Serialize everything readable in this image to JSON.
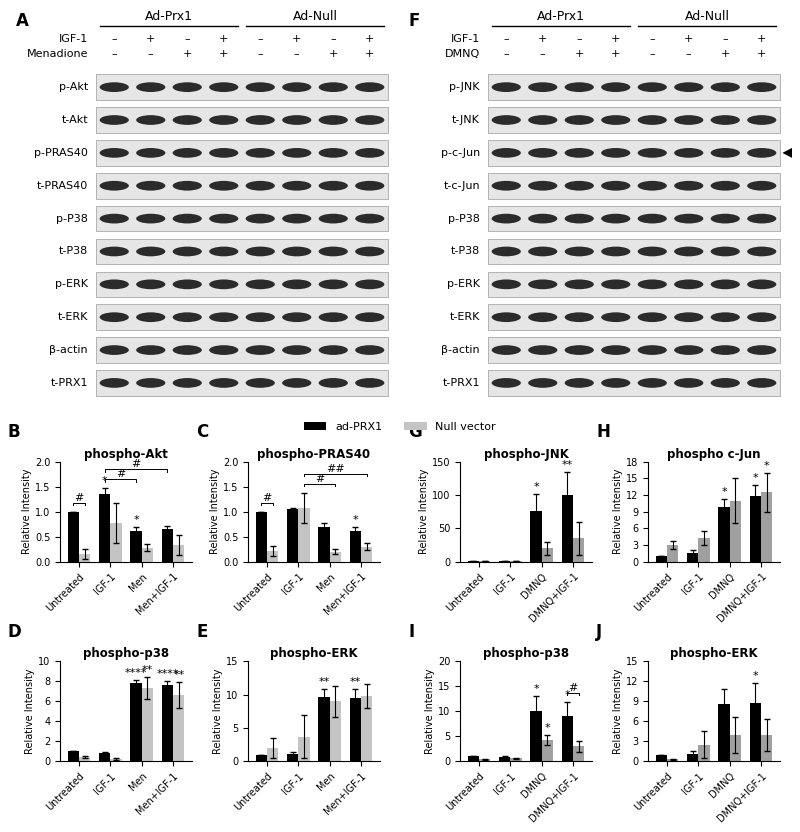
{
  "legend": "upper center",
  "blots": [
    {
      "panel": "A",
      "groups": [
        "Ad-Prx1",
        "Ad-Null"
      ],
      "treatments": [
        {
          "name": "IGF-1",
          "lanes": [
            "–",
            "+",
            "–",
            "+",
            "–",
            "+",
            "–",
            "+"
          ]
        },
        {
          "name": "Menadione",
          "lanes": [
            "–",
            "–",
            "+",
            "+",
            "–",
            "–",
            "+",
            "+"
          ]
        }
      ],
      "rows": [
        {
          "label": "p-Akt"
        },
        {
          "label": "t-Akt"
        },
        {
          "label": "p-PRAS40"
        },
        {
          "label": "t-PRAS40"
        },
        {
          "label": "p-P38"
        },
        {
          "label": "t-P38"
        },
        {
          "label": "p-ERK"
        },
        {
          "label": "t-ERK"
        },
        {
          "label": "β-actin"
        },
        {
          "label": "t-PRX1"
        }
      ]
    },
    {
      "panel": "F",
      "groups": [
        "Ad-Prx1",
        "Ad-Null"
      ],
      "treatments": [
        {
          "name": "IGF-1",
          "lanes": [
            "–",
            "+",
            "–",
            "+",
            "–",
            "+",
            "–",
            "+"
          ]
        },
        {
          "name": "DMNQ",
          "lanes": [
            "–",
            "–",
            "+",
            "+",
            "–",
            "–",
            "+",
            "+"
          ]
        }
      ],
      "rows": [
        {
          "label": "p-JNK"
        },
        {
          "label": "t-JNK"
        },
        {
          "label": "p-c-Jun",
          "arrow": true
        },
        {
          "label": "t-c-Jun"
        },
        {
          "label": "p-P38"
        },
        {
          "label": "t-P38"
        },
        {
          "label": "p-ERK"
        },
        {
          "label": "t-ERK"
        },
        {
          "label": "β-actin"
        },
        {
          "label": "t-PRX1"
        }
      ]
    }
  ],
  "chart_data": [
    {
      "type": "bar",
      "panel": "B",
      "title": "phospho-Akt",
      "y_label": "Relative Intensity",
      "categories": [
        "Untreated",
        "IGF-1",
        "Men",
        "Men+IGF-1"
      ],
      "series": [
        {
          "name": "ad-PRX1",
          "color": "#000000",
          "values": [
            1.0,
            1.35,
            0.62,
            0.65
          ],
          "errors": [
            0,
            0.12,
            0.08,
            0.07
          ]
        },
        {
          "name": "Null vector",
          "color": "#c4c4c4",
          "values": [
            0.15,
            0.78,
            0.28,
            0.33
          ],
          "errors": [
            0.1,
            0.4,
            0.07,
            0.2
          ]
        }
      ],
      "ylim": [
        0,
        2
      ],
      "yticks": [
        {
          "value": 0,
          "label": "0.0"
        },
        {
          "value": 0.5,
          "label": "0.5"
        },
        {
          "value": 1,
          "label": "1.0"
        },
        {
          "value": 1.5,
          "label": "1.5"
        },
        {
          "value": 2,
          "label": "2.0"
        }
      ],
      "annotations": [
        {
          "text": "*",
          "category": 1,
          "series": 0
        },
        {
          "text": "*",
          "category": 2,
          "series": 0
        }
      ],
      "brackets": [
        {
          "text": "#",
          "from": {
            "category": 0,
            "series": 0
          },
          "to": {
            "category": 0,
            "series": 1
          }
        },
        {
          "text": "#",
          "from": {
            "category": 1,
            "series": 0
          },
          "to": {
            "category": 2,
            "series": 0
          }
        },
        {
          "text": "#",
          "from": {
            "category": 1,
            "series": 0
          },
          "to": {
            "category": 3,
            "series": 0
          }
        }
      ]
    },
    {
      "type": "bar",
      "panel": "C",
      "title": "phospho-PRAS40",
      "y_label": "Relative Intensity",
      "categories": [
        "Untreated",
        "IGF-1",
        "Men",
        "Men+IGF-1"
      ],
      "series": [
        {
          "name": "ad-PRX1",
          "color": "#000000",
          "values": [
            1.0,
            1.05,
            0.7,
            0.62
          ],
          "errors": [
            0,
            0.03,
            0.08,
            0.08
          ]
        },
        {
          "name": "Null vector",
          "color": "#c4c4c4",
          "values": [
            0.22,
            1.08,
            0.2,
            0.3
          ],
          "errors": [
            0.1,
            0.3,
            0.05,
            0.07
          ]
        }
      ],
      "ylim": [
        0,
        2
      ],
      "yticks": [
        {
          "value": 0,
          "label": "0.0"
        },
        {
          "value": 0.5,
          "label": "0.5"
        },
        {
          "value": 1,
          "label": "1.0"
        },
        {
          "value": 1.5,
          "label": "1.5"
        },
        {
          "value": 2,
          "label": "2.0"
        }
      ],
      "annotations": [
        {
          "text": "*",
          "category": 3,
          "series": 0
        }
      ],
      "brackets": [
        {
          "text": "#",
          "from": {
            "category": 0,
            "series": 0
          },
          "to": {
            "category": 0,
            "series": 1
          }
        },
        {
          "text": "#",
          "from": {
            "category": 1,
            "series": 1
          },
          "to": {
            "category": 2,
            "series": 1
          }
        },
        {
          "text": "##",
          "from": {
            "category": 1,
            "series": 1
          },
          "to": {
            "category": 3,
            "series": 1
          }
        }
      ]
    },
    {
      "type": "bar",
      "panel": "D",
      "title": "phospho-p38",
      "y_label": "Relative Intensity",
      "categories": [
        "Untreated",
        "IGF-1",
        "Men",
        "Men+IGF-1"
      ],
      "series": [
        {
          "name": "ad-PRX1",
          "color": "#000000",
          "values": [
            1.0,
            0.85,
            7.8,
            7.6
          ],
          "errors": [
            0,
            0.05,
            0.3,
            0.4
          ]
        },
        {
          "name": "Null vector",
          "color": "#c4c4c4",
          "values": [
            0.4,
            0.25,
            7.3,
            6.6
          ],
          "errors": [
            0.1,
            0.1,
            1.1,
            1.3
          ]
        }
      ],
      "ylim": [
        0,
        10
      ],
      "yticks": [
        0,
        2,
        4,
        6,
        8,
        10
      ],
      "annotations": [
        {
          "text": "****",
          "category": 2,
          "series": 0
        },
        {
          "text": "**",
          "category": 2,
          "series": 1
        },
        {
          "text": "****",
          "category": 3,
          "series": 0
        },
        {
          "text": "**",
          "category": 3,
          "series": 1
        }
      ],
      "brackets": []
    },
    {
      "type": "bar",
      "panel": "E",
      "title": "phospho-ERK",
      "y_label": "Relative Intensity",
      "categories": [
        "Untreated",
        "IGF-1",
        "Men",
        "Men+IGF-1"
      ],
      "series": [
        {
          "name": "ad-PRX1",
          "color": "#000000",
          "values": [
            1.0,
            1.1,
            9.6,
            9.5
          ],
          "errors": [
            0,
            0.3,
            1.2,
            1.3
          ]
        },
        {
          "name": "Null vector",
          "color": "#c4c4c4",
          "values": [
            2.0,
            3.7,
            9.0,
            9.8
          ],
          "errors": [
            1.5,
            3.2,
            2.3,
            1.8
          ]
        }
      ],
      "ylim": [
        0,
        15
      ],
      "yticks": [
        0,
        5,
        10,
        15
      ],
      "annotations": [
        {
          "text": "**",
          "category": 2,
          "series": 0
        },
        {
          "text": "**",
          "category": 3,
          "series": 0
        }
      ],
      "brackets": []
    },
    {
      "type": "bar",
      "panel": "G",
      "title": "phospho-JNK",
      "y_label": "Relative Intensity",
      "categories": [
        "Untreated",
        "IGF-1",
        "DMNQ",
        "DMNQ+IGF-1"
      ],
      "series": [
        {
          "name": "ad-PRX1",
          "color": "#000000",
          "values": [
            1,
            1,
            76,
            100
          ],
          "errors": [
            0,
            0.3,
            25,
            35
          ]
        },
        {
          "name": "Null vector",
          "color": "#a0a0a0",
          "values": [
            0.5,
            0.8,
            20,
            35
          ],
          "errors": [
            0.2,
            0.3,
            10,
            25
          ]
        }
      ],
      "ylim": [
        0,
        150
      ],
      "yticks": [
        0,
        50,
        100,
        150
      ],
      "annotations": [
        {
          "text": "*",
          "category": 2,
          "series": 0
        },
        {
          "text": "**",
          "category": 3,
          "series": 0
        }
      ],
      "brackets": []
    },
    {
      "type": "bar",
      "panel": "H",
      "title": "phospho c-Jun",
      "y_label": "Relative Intensity",
      "categories": [
        "Untreated",
        "IGF-1",
        "DMNQ",
        "DMNQ+IGF-1"
      ],
      "series": [
        {
          "name": "ad-PRX1",
          "color": "#000000",
          "values": [
            1.0,
            1.6,
            9.8,
            11.8
          ],
          "errors": [
            0,
            0.5,
            1.5,
            2.0
          ]
        },
        {
          "name": "Null vector",
          "color": "#a0a0a0",
          "values": [
            3.0,
            4.3,
            11.0,
            12.5
          ],
          "errors": [
            0.8,
            1.3,
            4.0,
            3.5
          ]
        }
      ],
      "ylim": [
        0,
        18
      ],
      "yticks": [
        0,
        3,
        6,
        9,
        12,
        15,
        18
      ],
      "annotations": [
        {
          "text": "*",
          "category": 2,
          "series": 0
        },
        {
          "text": "*",
          "category": 3,
          "series": 0
        },
        {
          "text": "*",
          "category": 3,
          "series": 1
        }
      ],
      "brackets": []
    },
    {
      "type": "bar",
      "panel": "I",
      "title": "phospho-p38",
      "y_label": "Relative Intensity",
      "categories": [
        "Untreated",
        "IGF-1",
        "DMNQ",
        "DMNQ+IGF-1"
      ],
      "series": [
        {
          "name": "ad-PRX1",
          "color": "#000000",
          "values": [
            1.0,
            0.8,
            10.0,
            9.1
          ],
          "errors": [
            0,
            0.2,
            3.0,
            2.8
          ]
        },
        {
          "name": "Null vector",
          "color": "#a0a0a0",
          "values": [
            0.4,
            0.6,
            4.3,
            3.0
          ],
          "errors": [
            0.1,
            0.1,
            1.0,
            1.1
          ]
        }
      ],
      "ylim": [
        0,
        20
      ],
      "yticks": [
        0,
        5,
        10,
        15,
        20
      ],
      "annotations": [
        {
          "text": "*",
          "category": 2,
          "series": 0
        },
        {
          "text": "*",
          "category": 2,
          "series": 1
        },
        {
          "text": "*",
          "category": 3,
          "series": 0
        }
      ],
      "brackets": [
        {
          "text": "#",
          "from": {
            "category": 3,
            "series": 0
          },
          "to": {
            "category": 3,
            "series": 1
          }
        }
      ]
    },
    {
      "type": "bar",
      "panel": "J",
      "title": "phospho-ERK",
      "y_label": "Relative Intensity",
      "categories": [
        "Untreated",
        "IGF-1",
        "DMNQ",
        "DMNQ+IGF-1"
      ],
      "series": [
        {
          "name": "ad-PRX1",
          "color": "#000000",
          "values": [
            1.0,
            1.1,
            8.6,
            8.8
          ],
          "errors": [
            0,
            0.4,
            2.3,
            3.0
          ]
        },
        {
          "name": "Null vector",
          "color": "#a0a0a0",
          "values": [
            0.3,
            2.5,
            4.0,
            4.0
          ],
          "errors": [
            0.1,
            2.0,
            2.7,
            2.4
          ]
        }
      ],
      "ylim": [
        0,
        15
      ],
      "yticks": [
        0,
        3,
        6,
        9,
        12,
        15
      ],
      "annotations": [
        {
          "text": "*",
          "category": 3,
          "series": 0
        }
      ],
      "brackets": []
    }
  ]
}
